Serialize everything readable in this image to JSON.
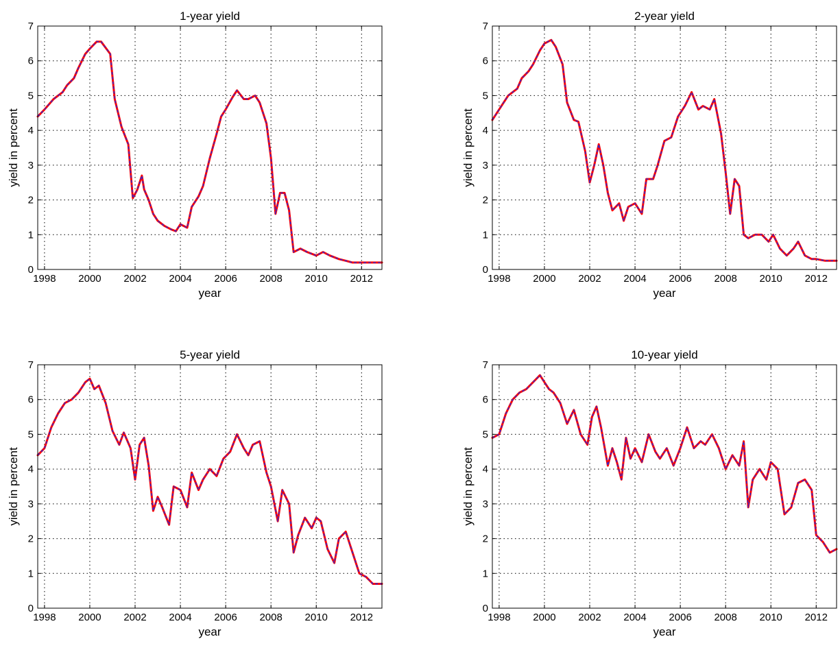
{
  "colors": {
    "fitted": "#ff0000",
    "observed": "#2a2ad8"
  },
  "chart_data": [
    {
      "type": "line",
      "title": "1-year yield",
      "xlabel": "year",
      "ylabel": "yield in percent",
      "xlim": [
        1997.7,
        2012.9
      ],
      "ylim": [
        0,
        7
      ],
      "xticks": [
        "1998",
        "2000",
        "2002",
        "2004",
        "2006",
        "2008",
        "2010",
        "2012"
      ],
      "yticks": [
        "0",
        "1",
        "2",
        "3",
        "4",
        "5",
        "6",
        "7"
      ],
      "grid": true,
      "x": [
        1997.7,
        1998.0,
        1998.4,
        1998.8,
        1999.0,
        1999.3,
        1999.5,
        1999.8,
        2000.0,
        2000.3,
        2000.5,
        2000.9,
        2001.1,
        2001.4,
        2001.7,
        2001.9,
        2002.1,
        2002.3,
        2002.4,
        2002.6,
        2002.8,
        2003.0,
        2003.3,
        2003.6,
        2003.8,
        2004.0,
        2004.3,
        2004.5,
        2004.8,
        2005.0,
        2005.3,
        2005.6,
        2005.8,
        2006.0,
        2006.3,
        2006.5,
        2006.8,
        2007.0,
        2007.3,
        2007.5,
        2007.8,
        2008.0,
        2008.2,
        2008.4,
        2008.6,
        2008.8,
        2009.0,
        2009.3,
        2009.6,
        2010.0,
        2010.3,
        2010.6,
        2011.0,
        2011.3,
        2011.6,
        2012.0,
        2012.3,
        2012.6,
        2012.9
      ],
      "series": [
        {
          "values": [
            4.4,
            4.6,
            4.9,
            5.1,
            5.3,
            5.5,
            5.8,
            6.2,
            6.35,
            6.55,
            6.55,
            6.2,
            4.9,
            4.1,
            3.6,
            2.05,
            2.3,
            2.7,
            2.3,
            2.0,
            1.6,
            1.4,
            1.25,
            1.15,
            1.1,
            1.3,
            1.2,
            1.8,
            2.1,
            2.4,
            3.2,
            3.9,
            4.4,
            4.6,
            4.95,
            5.15,
            4.9,
            4.9,
            5.0,
            4.8,
            4.2,
            3.2,
            1.6,
            2.2,
            2.2,
            1.7,
            0.5,
            0.6,
            0.5,
            0.4,
            0.5,
            0.4,
            0.3,
            0.25,
            0.2,
            0.2,
            0.2,
            0.2,
            0.2
          ]
        },
        {
          "values": [
            4.4,
            4.6,
            4.9,
            5.1,
            5.3,
            5.5,
            5.8,
            6.2,
            6.35,
            6.55,
            6.55,
            6.2,
            4.9,
            4.1,
            3.6,
            2.05,
            2.3,
            2.7,
            2.3,
            2.0,
            1.6,
            1.4,
            1.25,
            1.15,
            1.1,
            1.3,
            1.2,
            1.8,
            2.1,
            2.4,
            3.2,
            3.9,
            4.4,
            4.6,
            4.95,
            5.15,
            4.9,
            4.9,
            5.0,
            4.8,
            4.2,
            3.2,
            1.6,
            2.2,
            2.2,
            1.7,
            0.5,
            0.6,
            0.5,
            0.4,
            0.5,
            0.4,
            0.3,
            0.25,
            0.2,
            0.2,
            0.2,
            0.2,
            0.2
          ]
        }
      ]
    },
    {
      "type": "line",
      "title": "2-year yield",
      "xlabel": "year",
      "ylabel": "yield in percent",
      "xlim": [
        1997.7,
        2012.9
      ],
      "ylim": [
        0,
        7
      ],
      "xticks": [
        "1998",
        "2000",
        "2002",
        "2004",
        "2006",
        "2008",
        "2010",
        "2012"
      ],
      "yticks": [
        "0",
        "1",
        "2",
        "3",
        "4",
        "5",
        "6",
        "7"
      ],
      "grid": true,
      "x": [
        1997.7,
        1998.0,
        1998.4,
        1998.8,
        1999.0,
        1999.3,
        1999.5,
        1999.8,
        2000.0,
        2000.3,
        2000.5,
        2000.8,
        2001.0,
        2001.3,
        2001.5,
        2001.8,
        2002.0,
        2002.2,
        2002.4,
        2002.6,
        2002.8,
        2003.0,
        2003.3,
        2003.5,
        2003.7,
        2004.0,
        2004.3,
        2004.5,
        2004.8,
        2005.0,
        2005.3,
        2005.6,
        2005.9,
        2006.2,
        2006.5,
        2006.8,
        2007.0,
        2007.3,
        2007.5,
        2007.8,
        2008.0,
        2008.2,
        2008.4,
        2008.6,
        2008.8,
        2009.0,
        2009.3,
        2009.6,
        2009.9,
        2010.1,
        2010.4,
        2010.7,
        2011.0,
        2011.2,
        2011.5,
        2011.8,
        2012.0,
        2012.4,
        2012.9
      ],
      "series": [
        {
          "values": [
            4.3,
            4.6,
            5.0,
            5.2,
            5.5,
            5.7,
            5.9,
            6.3,
            6.5,
            6.6,
            6.4,
            5.9,
            4.8,
            4.3,
            4.25,
            3.4,
            2.5,
            3.0,
            3.6,
            3.0,
            2.2,
            1.7,
            1.9,
            1.4,
            1.8,
            1.9,
            1.6,
            2.6,
            2.6,
            3.0,
            3.7,
            3.8,
            4.4,
            4.7,
            5.1,
            4.6,
            4.7,
            4.6,
            4.9,
            3.9,
            2.8,
            1.6,
            2.6,
            2.4,
            1.0,
            0.9,
            1.0,
            1.0,
            0.8,
            1.0,
            0.6,
            0.4,
            0.6,
            0.8,
            0.4,
            0.3,
            0.3,
            0.25,
            0.25
          ]
        },
        {
          "values": [
            4.3,
            4.6,
            5.0,
            5.2,
            5.5,
            5.7,
            5.9,
            6.3,
            6.5,
            6.6,
            6.4,
            5.9,
            4.8,
            4.3,
            4.25,
            3.4,
            2.5,
            3.0,
            3.6,
            3.0,
            2.2,
            1.7,
            1.9,
            1.4,
            1.8,
            1.9,
            1.6,
            2.6,
            2.6,
            3.0,
            3.7,
            3.8,
            4.4,
            4.7,
            5.1,
            4.6,
            4.7,
            4.6,
            4.9,
            3.9,
            2.8,
            1.6,
            2.6,
            2.4,
            1.0,
            0.9,
            1.0,
            1.0,
            0.8,
            1.0,
            0.6,
            0.4,
            0.6,
            0.8,
            0.4,
            0.3,
            0.3,
            0.25,
            0.25
          ]
        }
      ]
    },
    {
      "type": "line",
      "title": "5-year yield",
      "xlabel": "year",
      "ylabel": "yield in percent",
      "xlim": [
        1997.7,
        2012.9
      ],
      "ylim": [
        0,
        7
      ],
      "xticks": [
        "1998",
        "2000",
        "2002",
        "2004",
        "2006",
        "2008",
        "2010",
        "2012"
      ],
      "yticks": [
        "0",
        "1",
        "2",
        "3",
        "4",
        "5",
        "6",
        "7"
      ],
      "grid": true,
      "x": [
        1997.7,
        1998.0,
        1998.3,
        1998.6,
        1998.9,
        1999.2,
        1999.5,
        1999.8,
        2000.0,
        2000.2,
        2000.4,
        2000.7,
        2001.0,
        2001.3,
        2001.5,
        2001.8,
        2002.0,
        2002.2,
        2002.4,
        2002.6,
        2002.8,
        2003.0,
        2003.2,
        2003.5,
        2003.7,
        2004.0,
        2004.3,
        2004.5,
        2004.8,
        2005.0,
        2005.3,
        2005.6,
        2005.9,
        2006.2,
        2006.5,
        2006.8,
        2007.0,
        2007.2,
        2007.5,
        2007.8,
        2008.0,
        2008.3,
        2008.5,
        2008.8,
        2009.0,
        2009.2,
        2009.5,
        2009.8,
        2010.0,
        2010.2,
        2010.5,
        2010.8,
        2011.0,
        2011.3,
        2011.6,
        2011.9,
        2012.2,
        2012.5,
        2012.9
      ],
      "series": [
        {
          "values": [
            4.4,
            4.6,
            5.2,
            5.6,
            5.9,
            6.0,
            6.2,
            6.5,
            6.6,
            6.3,
            6.4,
            5.9,
            5.1,
            4.7,
            5.05,
            4.6,
            3.7,
            4.7,
            4.9,
            4.1,
            2.8,
            3.2,
            2.9,
            2.4,
            3.5,
            3.4,
            2.9,
            3.9,
            3.4,
            3.7,
            4.0,
            3.8,
            4.3,
            4.5,
            5.0,
            4.6,
            4.4,
            4.7,
            4.8,
            3.9,
            3.5,
            2.5,
            3.4,
            3.0,
            1.6,
            2.1,
            2.6,
            2.3,
            2.6,
            2.5,
            1.7,
            1.3,
            2.0,
            2.2,
            1.6,
            1.0,
            0.9,
            0.7,
            0.7
          ]
        },
        {
          "values": [
            4.4,
            4.6,
            5.2,
            5.6,
            5.9,
            6.0,
            6.2,
            6.5,
            6.6,
            6.3,
            6.4,
            5.9,
            5.1,
            4.7,
            5.05,
            4.6,
            3.7,
            4.7,
            4.9,
            4.1,
            2.8,
            3.2,
            2.9,
            2.4,
            3.5,
            3.4,
            2.9,
            3.9,
            3.4,
            3.7,
            4.0,
            3.8,
            4.3,
            4.5,
            5.0,
            4.6,
            4.4,
            4.7,
            4.8,
            3.9,
            3.5,
            2.5,
            3.4,
            3.0,
            1.6,
            2.1,
            2.6,
            2.3,
            2.6,
            2.5,
            1.7,
            1.3,
            2.0,
            2.2,
            1.6,
            1.0,
            0.9,
            0.7,
            0.7
          ]
        }
      ]
    },
    {
      "type": "line",
      "title": "10-year yield",
      "xlabel": "year",
      "ylabel": "yield in percent",
      "xlim": [
        1997.7,
        2012.9
      ],
      "ylim": [
        0,
        7
      ],
      "xticks": [
        "1998",
        "2000",
        "2002",
        "2004",
        "2006",
        "2008",
        "2010",
        "2012"
      ],
      "yticks": [
        "0",
        "1",
        "2",
        "3",
        "4",
        "5",
        "6",
        "7"
      ],
      "grid": true,
      "x": [
        1997.7,
        1998.0,
        1998.3,
        1998.6,
        1998.9,
        1999.2,
        1999.5,
        1999.8,
        2000.0,
        2000.2,
        2000.4,
        2000.7,
        2001.0,
        2001.3,
        2001.6,
        2001.9,
        2002.1,
        2002.3,
        2002.5,
        2002.8,
        2003.0,
        2003.2,
        2003.4,
        2003.6,
        2003.8,
        2004.0,
        2004.3,
        2004.6,
        2004.9,
        2005.1,
        2005.4,
        2005.7,
        2006.0,
        2006.3,
        2006.6,
        2006.9,
        2007.1,
        2007.4,
        2007.7,
        2008.0,
        2008.3,
        2008.6,
        2008.8,
        2009.0,
        2009.2,
        2009.5,
        2009.8,
        2010.0,
        2010.3,
        2010.6,
        2010.9,
        2011.2,
        2011.5,
        2011.8,
        2012.0,
        2012.3,
        2012.6,
        2012.9
      ],
      "series": [
        {
          "values": [
            4.9,
            5.0,
            5.6,
            6.0,
            6.2,
            6.3,
            6.5,
            6.7,
            6.5,
            6.3,
            6.2,
            5.9,
            5.3,
            5.7,
            5.0,
            4.7,
            5.5,
            5.8,
            5.2,
            4.1,
            4.6,
            4.2,
            3.7,
            4.9,
            4.3,
            4.6,
            4.2,
            5.0,
            4.5,
            4.3,
            4.6,
            4.1,
            4.6,
            5.2,
            4.6,
            4.8,
            4.7,
            5.0,
            4.6,
            4.0,
            4.4,
            4.1,
            4.8,
            2.9,
            3.7,
            4.0,
            3.7,
            4.2,
            4.0,
            2.7,
            2.9,
            3.6,
            3.7,
            3.4,
            2.1,
            1.9,
            1.6,
            1.7
          ]
        },
        {
          "values": [
            4.9,
            5.0,
            5.6,
            6.0,
            6.2,
            6.3,
            6.5,
            6.7,
            6.5,
            6.3,
            6.2,
            5.9,
            5.3,
            5.7,
            5.0,
            4.7,
            5.5,
            5.8,
            5.2,
            4.1,
            4.6,
            4.2,
            3.7,
            4.9,
            4.3,
            4.6,
            4.2,
            5.0,
            4.5,
            4.3,
            4.6,
            4.1,
            4.6,
            5.2,
            4.6,
            4.8,
            4.7,
            5.0,
            4.6,
            4.0,
            4.4,
            4.1,
            4.8,
            2.9,
            3.7,
            4.0,
            3.7,
            4.2,
            4.0,
            2.7,
            2.9,
            3.6,
            3.7,
            3.4,
            2.1,
            1.9,
            1.6,
            1.7
          ]
        }
      ]
    }
  ]
}
